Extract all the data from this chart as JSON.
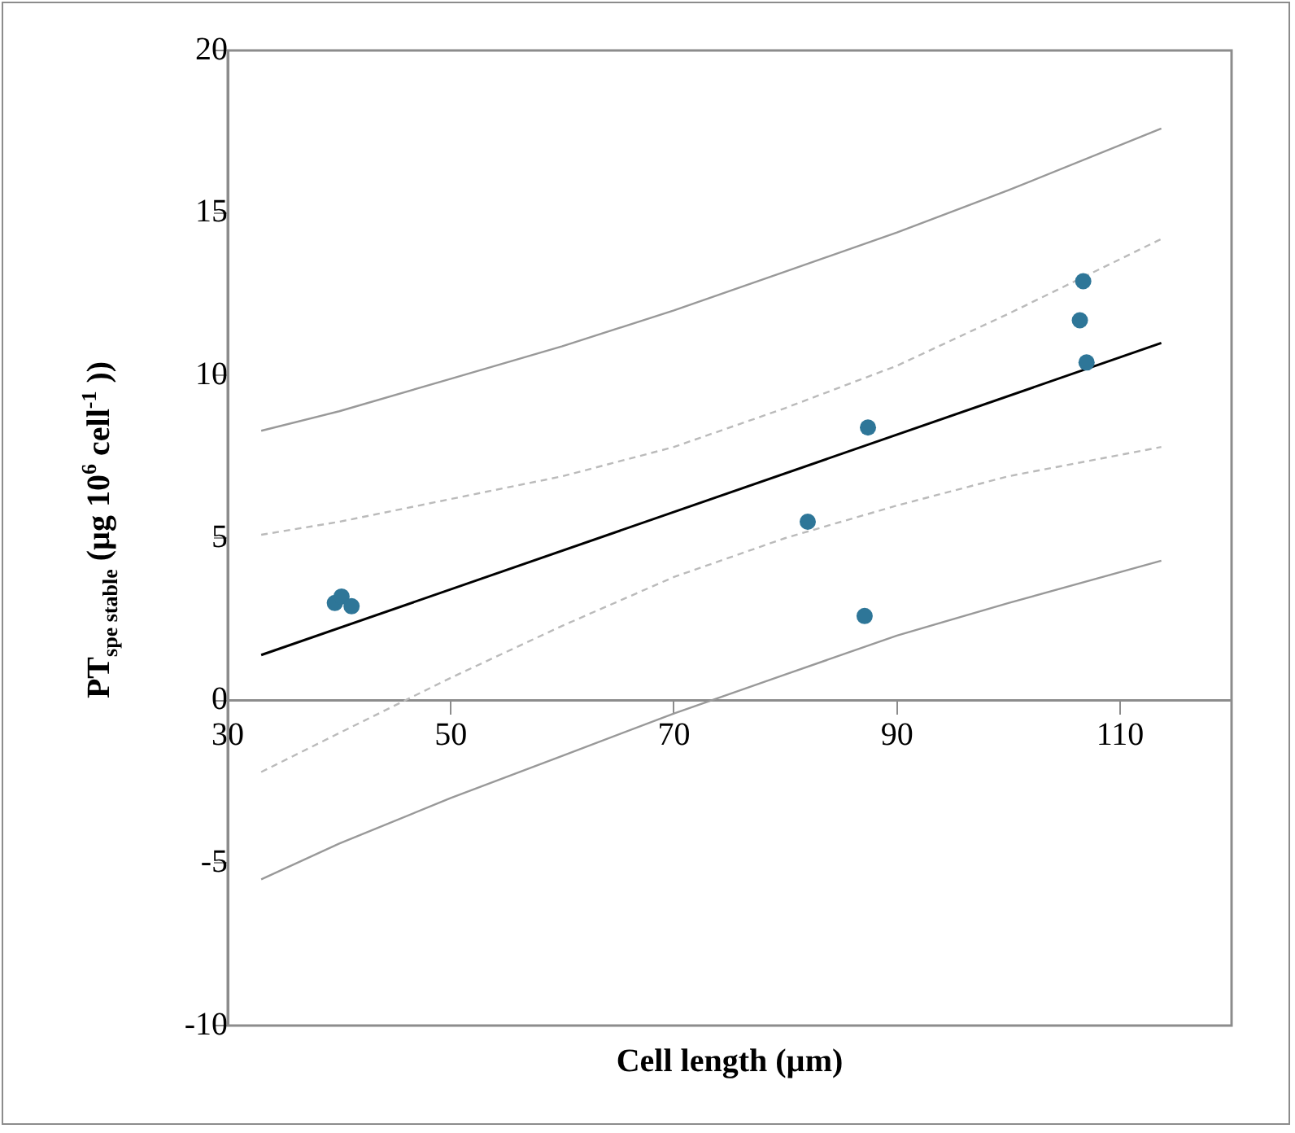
{
  "chart_data": {
    "type": "scatter",
    "xlabel": "Cell length (µm)",
    "ylabel": "PT$_{spe stable}$ (µg 10$^{6}$ cell$^{-1}$ ))",
    "xlim": [
      30,
      120
    ],
    "xticks": [
      30,
      50,
      70,
      90,
      110
    ],
    "ylim": [
      -10,
      20
    ],
    "yticks": [
      -10,
      -5,
      0,
      5,
      10,
      15,
      20
    ],
    "grid": false,
    "legend": false,
    "series": [
      {
        "type": "scatter",
        "color": "#2e7698",
        "marker": "circle",
        "x": [
          39.6,
          40.2,
          41.1,
          82.0,
          87.4,
          87.1,
          106.7,
          106.4,
          107.0
        ],
        "values": [
          3.0,
          3.2,
          2.9,
          5.5,
          8.4,
          2.6,
          12.9,
          11.7,
          10.4
        ]
      },
      {
        "type": "line",
        "color": "#000000",
        "marker": "none",
        "line_style": "solid",
        "x": [
          33,
          113.7
        ],
        "values": [
          1.4,
          11.0
        ]
      },
      {
        "type": "line",
        "color": "#999999",
        "marker": "none",
        "line_style": "solid",
        "x": [
          33,
          40,
          50,
          60,
          70,
          80,
          90,
          100,
          113.7
        ],
        "values": [
          8.3,
          8.9,
          9.9,
          10.9,
          12.0,
          13.2,
          14.4,
          15.7,
          17.6
        ]
      },
      {
        "type": "line",
        "color": "#999999",
        "marker": "none",
        "line_style": "solid",
        "x": [
          33,
          40,
          50,
          60,
          70,
          80,
          90,
          100,
          113.7
        ],
        "values": [
          -5.5,
          -4.4,
          -3.0,
          -1.7,
          -0.4,
          0.8,
          2.0,
          3.0,
          4.3
        ]
      },
      {
        "type": "line",
        "color": "#bbbbbb",
        "marker": "none",
        "line_style": "dashed",
        "x": [
          33,
          40,
          50,
          60,
          70,
          80,
          90,
          100,
          113.7
        ],
        "values": [
          5.1,
          5.5,
          6.2,
          6.9,
          7.8,
          9.0,
          10.3,
          11.9,
          14.2
        ]
      },
      {
        "type": "line",
        "color": "#bbbbbb",
        "marker": "none",
        "line_style": "dashed",
        "x": [
          33,
          40,
          50,
          60,
          70,
          80,
          90,
          100,
          113.7
        ],
        "values": [
          -2.2,
          -1.0,
          0.7,
          2.3,
          3.8,
          5.0,
          6.0,
          6.9,
          7.8
        ]
      }
    ]
  }
}
